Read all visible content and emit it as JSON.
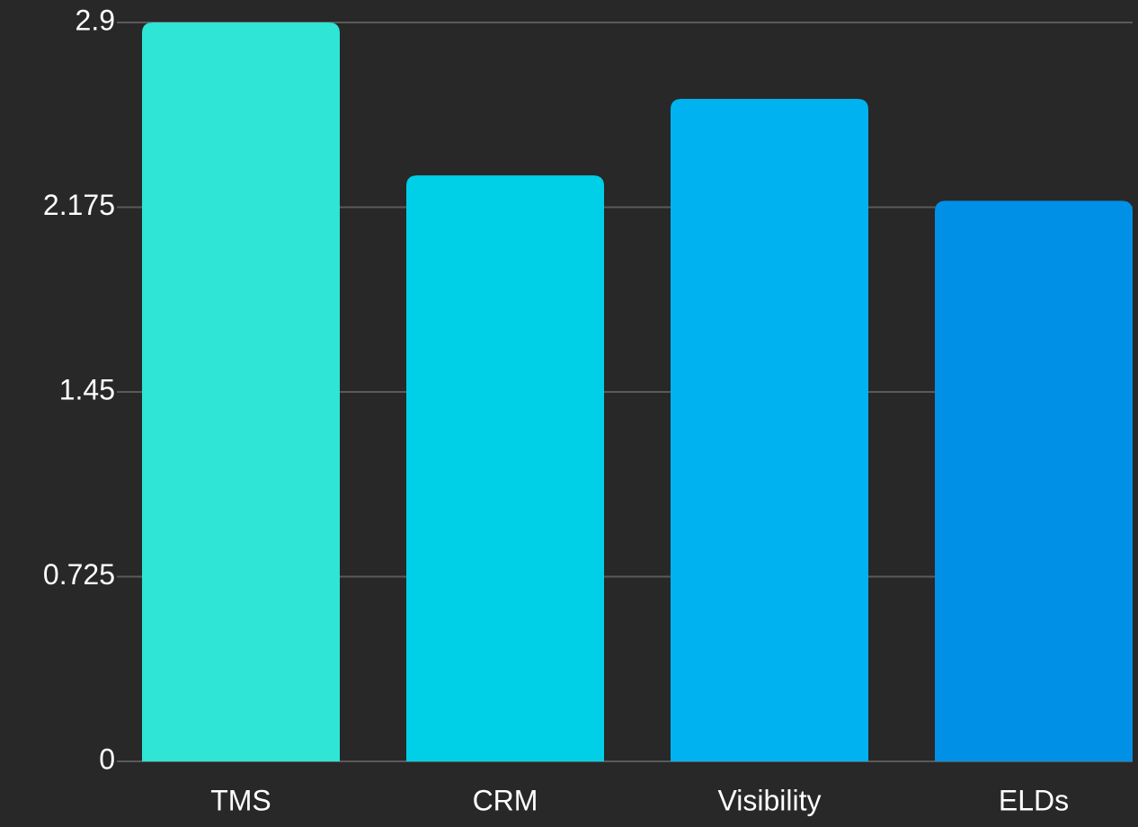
{
  "chart_data": {
    "type": "bar",
    "categories": [
      "TMS",
      "CRM",
      "Visibility",
      "ELDs"
    ],
    "values": [
      2.9,
      2.3,
      2.6,
      2.2
    ],
    "colors": [
      "#2ee5d6",
      "#00cfe8",
      "#00b3f0",
      "#0090e6"
    ],
    "ylim": [
      0,
      2.9
    ],
    "yticks": [
      0,
      0.725,
      1.45,
      2.175,
      2.9
    ],
    "grid": true
  }
}
